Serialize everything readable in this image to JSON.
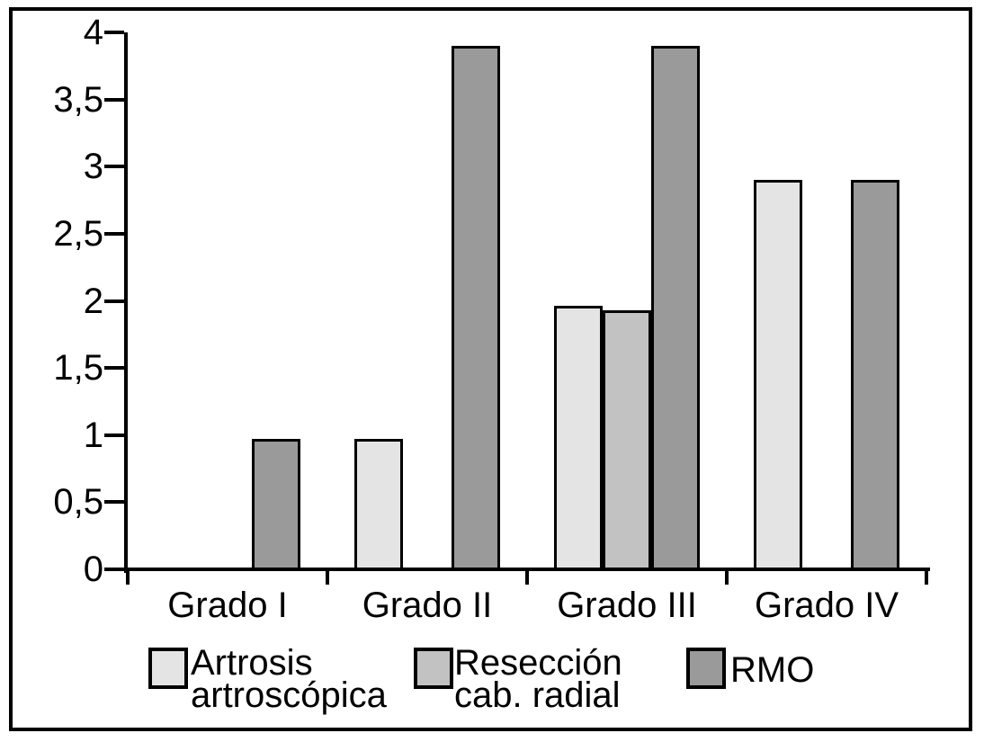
{
  "chart_data": {
    "type": "bar",
    "title": "",
    "xlabel": "",
    "ylabel": "",
    "ylim": [
      0,
      4
    ],
    "grid": false,
    "legend_position": "bottom",
    "categories": [
      "Grado I",
      "Grado II",
      "Grado III",
      "Grado IV"
    ],
    "y_ticks": [
      {
        "v": 0,
        "label": "0"
      },
      {
        "v": 0.5,
        "label": "0,5"
      },
      {
        "v": 1,
        "label": "1"
      },
      {
        "v": 1.5,
        "label": "1,5"
      },
      {
        "v": 2,
        "label": "2"
      },
      {
        "v": 2.5,
        "label": "2,5"
      },
      {
        "v": 3,
        "label": "3"
      },
      {
        "v": 3.5,
        "label": "3,5"
      },
      {
        "v": 4,
        "label": "4"
      }
    ],
    "series": [
      {
        "name": "Artrosis artroscópica",
        "legend_lines": [
          "Artrosis",
          "artroscópica"
        ],
        "color": "#e4e4e4",
        "values": [
          0,
          0.97,
          1.96,
          2.9
        ]
      },
      {
        "name": "Resección cab. radial",
        "legend_lines": [
          "Resección",
          "cab. radial"
        ],
        "color": "#c2c2c2",
        "values": [
          0,
          0,
          1.93,
          0
        ]
      },
      {
        "name": "RMO",
        "legend_lines": [
          "RMO"
        ],
        "color": "#9a9a9a",
        "values": [
          0.97,
          3.9,
          3.9,
          2.9
        ]
      }
    ]
  },
  "colors": {
    "background": "#ffffff",
    "frame_border": "#000000",
    "axis": "#000000",
    "bar_outline": "#000000",
    "text": "#000000"
  }
}
